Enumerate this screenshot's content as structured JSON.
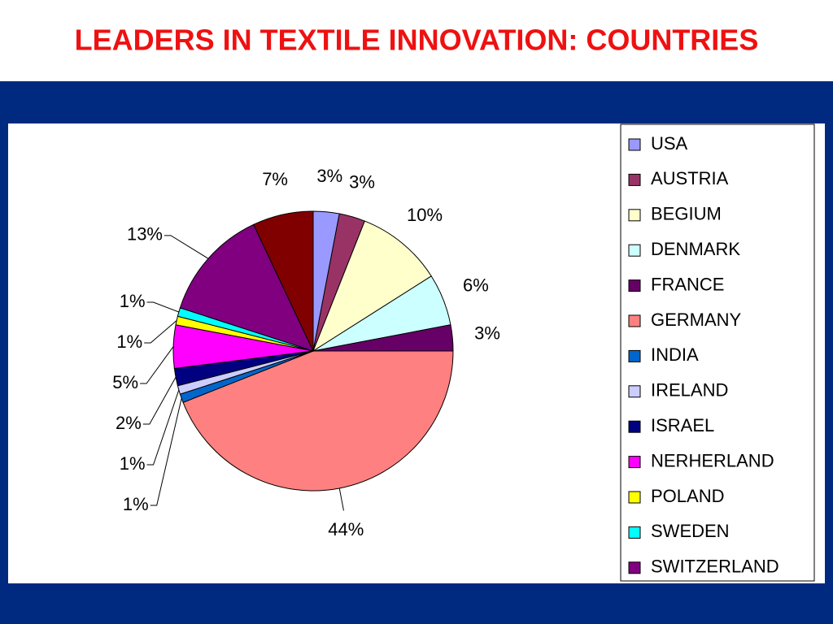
{
  "chart_data": {
    "type": "pie",
    "title": "LEADERS IN TEXTILE INNOVATION: COUNTRIES",
    "categories": [
      "USA",
      "AUSTRIA",
      "BEGIUM",
      "DENMARK",
      "FRANCE",
      "GERMANY",
      "INDIA",
      "IRELAND",
      "ISRAEL",
      "NERHERLAND",
      "POLAND",
      "SWEDEN",
      "SWITZERLAND",
      null
    ],
    "values": [
      3,
      3,
      10,
      6,
      3,
      44,
      1,
      1,
      2,
      5,
      1,
      1,
      13,
      7
    ],
    "value_labels": [
      "3%",
      "3%",
      "10%",
      "6%",
      "3%",
      "44%",
      "1%",
      "1%",
      "2%",
      "5%",
      "1%",
      "1%",
      "13%",
      "7%"
    ],
    "colors": [
      "#9999ff",
      "#993366",
      "#ffffcc",
      "#ccffff",
      "#660066",
      "#ff8080",
      "#0066cc",
      "#ccccff",
      "#000080",
      "#ff00ff",
      "#ffff00",
      "#00ffff",
      "#800080",
      "#800000"
    ],
    "legend": "right"
  }
}
